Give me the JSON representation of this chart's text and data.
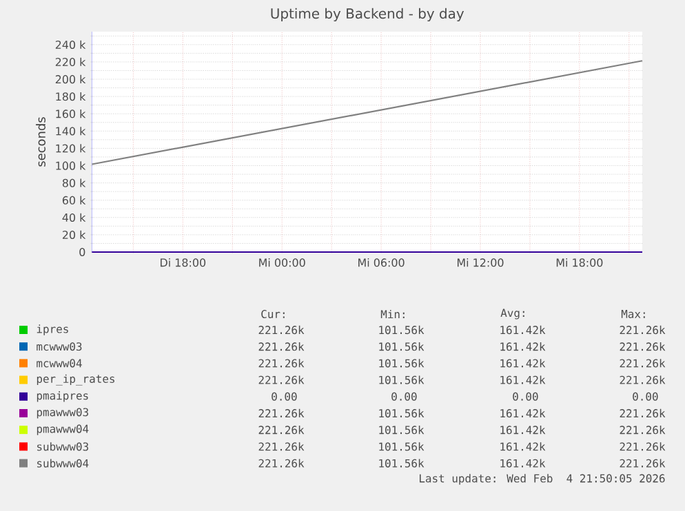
{
  "chart_data": {
    "type": "line",
    "title": "Uptime by Backend - by day",
    "ylabel": "seconds",
    "xlim": [
      "2026-02-03T12:30",
      "2026-02-04T21:48"
    ],
    "ylim": [
      0,
      255000
    ],
    "xticks": [
      {
        "value": "2026-02-03T15:00",
        "label": null
      },
      {
        "value": "2026-02-03T18:00",
        "label": "Di 18:00"
      },
      {
        "value": "2026-02-03T21:00",
        "label": null
      },
      {
        "value": "2026-02-04T00:00",
        "label": "Mi 00:00"
      },
      {
        "value": "2026-02-04T03:00",
        "label": null
      },
      {
        "value": "2026-02-04T06:00",
        "label": "Mi 06:00"
      },
      {
        "value": "2026-02-04T09:00",
        "label": null
      },
      {
        "value": "2026-02-04T12:00",
        "label": "Mi 12:00"
      },
      {
        "value": "2026-02-04T15:00",
        "label": null
      },
      {
        "value": "2026-02-04T18:00",
        "label": "Mi 18:00"
      },
      {
        "value": "2026-02-04T21:00",
        "label": null
      }
    ],
    "yticks": [
      {
        "value": 0,
        "label": "0"
      },
      {
        "value": 10000,
        "label": null
      },
      {
        "value": 20000,
        "label": "20 k"
      },
      {
        "value": 30000,
        "label": null
      },
      {
        "value": 40000,
        "label": "40 k"
      },
      {
        "value": 50000,
        "label": null
      },
      {
        "value": 60000,
        "label": "60 k"
      },
      {
        "value": 70000,
        "label": null
      },
      {
        "value": 80000,
        "label": "80 k"
      },
      {
        "value": 90000,
        "label": null
      },
      {
        "value": 100000,
        "label": "100 k"
      },
      {
        "value": 110000,
        "label": null
      },
      {
        "value": 120000,
        "label": "120 k"
      },
      {
        "value": 130000,
        "label": null
      },
      {
        "value": 140000,
        "label": "140 k"
      },
      {
        "value": 150000,
        "label": null
      },
      {
        "value": 160000,
        "label": "160 k"
      },
      {
        "value": 170000,
        "label": null
      },
      {
        "value": 180000,
        "label": "180 k"
      },
      {
        "value": 190000,
        "label": null
      },
      {
        "value": 200000,
        "label": "200 k"
      },
      {
        "value": 210000,
        "label": null
      },
      {
        "value": 220000,
        "label": "220 k"
      },
      {
        "value": 230000,
        "label": null
      },
      {
        "value": 240000,
        "label": "240 k"
      },
      {
        "value": 250000,
        "label": null
      }
    ],
    "grid": true,
    "legend": "bottom",
    "marker": "none",
    "line_style": "solid",
    "x": [
      "2026-02-03T12:30",
      "2026-02-04T21:48"
    ],
    "series": [
      {
        "name": "ipres",
        "color": "#00cc00",
        "values": [
          null,
          null
        ]
      },
      {
        "name": "mcwww03",
        "color": "#0066b3",
        "values": [
          null,
          null
        ]
      },
      {
        "name": "mcwww04",
        "color": "#ff8000",
        "values": [
          null,
          null
        ]
      },
      {
        "name": "per_ip_rates",
        "color": "#ffcc00",
        "values": [
          null,
          null
        ]
      },
      {
        "name": "pmaipres",
        "color": "#330099",
        "values": [
          0,
          0
        ]
      },
      {
        "name": "pmawww03",
        "color": "#990099",
        "values": [
          null,
          null
        ]
      },
      {
        "name": "pmawww04",
        "color": "#ccff00",
        "values": [
          null,
          null
        ]
      },
      {
        "name": "subwww03",
        "color": "#ff0000",
        "values": [
          null,
          null
        ]
      },
      {
        "name": "subwww04",
        "color": "#808080",
        "values": [
          101600,
          221300
        ]
      }
    ],
    "annotations": [
      "Cur:",
      "Min:",
      "Avg:",
      "Max:",
      "221.26k",
      "101.56k",
      "161.42k",
      "221.26k",
      "221.26k",
      "101.56k",
      "161.42k",
      "221.26k",
      "221.26k",
      "101.56k",
      "161.42k",
      "221.26k",
      "221.26k",
      "101.56k",
      "161.42k",
      "221.26k",
      "0.00",
      "0.00",
      "0.00",
      "0.00",
      "221.26k",
      "101.56k",
      "161.42k",
      "221.26k",
      "221.26k",
      "101.56k",
      "161.42k",
      "221.26k",
      "221.26k",
      "101.56k",
      "161.42k",
      "221.26k",
      "221.26k",
      "101.56k",
      "161.42k",
      "221.26k",
      "Last update: Wed Feb  4 21:50:05 2026"
    ]
  }
}
